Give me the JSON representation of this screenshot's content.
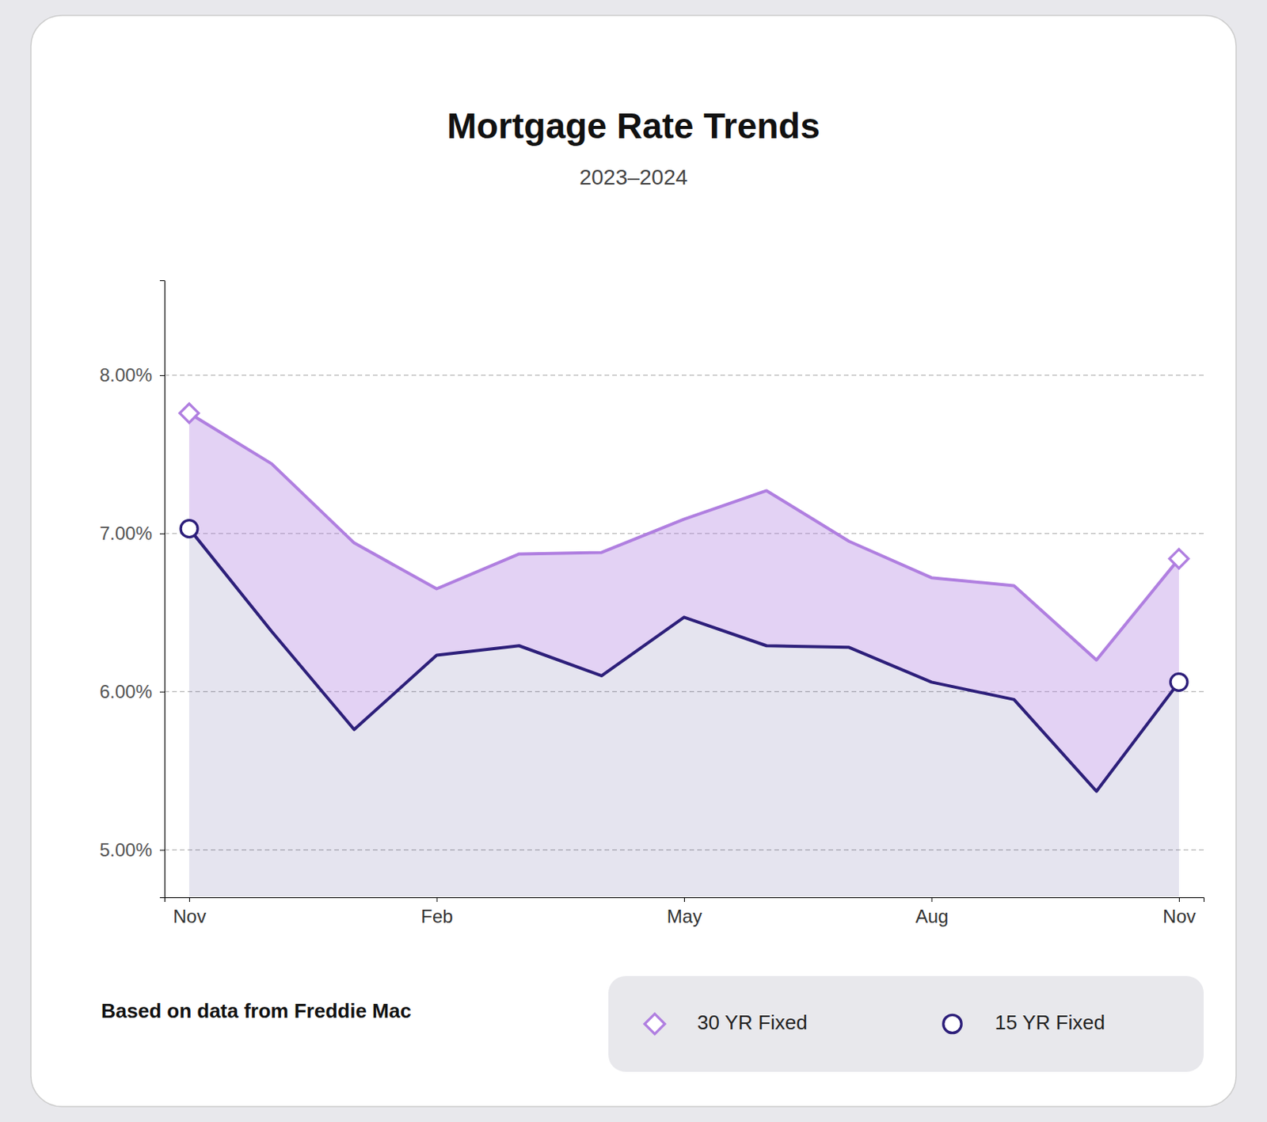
{
  "chart_data": {
    "type": "line",
    "title": "Mortgage Rate Trends",
    "subtitle": "2023–2024",
    "footnote": "Based on data from Freddie Mac",
    "categories": [
      "Nov",
      null,
      null,
      "Feb",
      null,
      null,
      "May",
      null,
      null,
      "Aug",
      null,
      null,
      "Nov"
    ],
    "series": [
      {
        "name": "30 YR Fixed",
        "color": "#b07fe0",
        "marker": "diamond",
        "values": [
          7.76,
          7.44,
          6.94,
          6.65,
          6.87,
          6.88,
          7.09,
          7.27,
          6.95,
          6.72,
          6.67,
          6.2,
          6.84
        ]
      },
      {
        "name": "15 YR Fixed",
        "color": "#2d1f7a",
        "marker": "circle",
        "values": [
          7.03,
          6.38,
          5.76,
          6.23,
          6.29,
          6.1,
          6.47,
          6.29,
          6.28,
          6.06,
          5.95,
          5.37,
          6.06
        ]
      }
    ],
    "ylim": [
      4.7,
      8.6
    ],
    "yticks": [
      {
        "value": 5.0,
        "label": "5.00%"
      },
      {
        "value": 6.0,
        "label": "6.00%"
      },
      {
        "value": 7.0,
        "label": "7.00%"
      },
      {
        "value": 8.0,
        "label": "8.00%"
      }
    ],
    "grid": true,
    "legend": "lower right"
  }
}
